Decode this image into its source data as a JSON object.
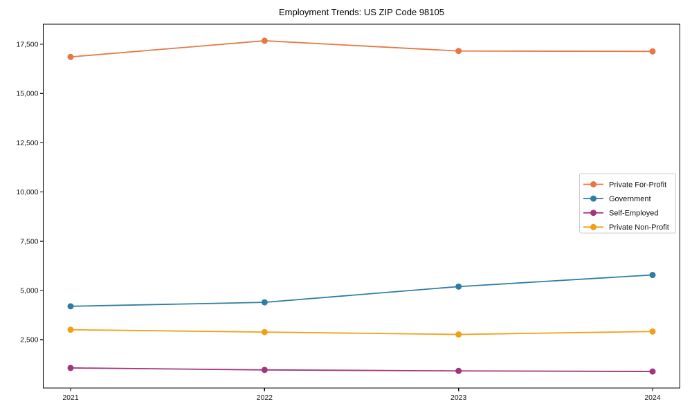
{
  "chart_data": {
    "type": "line",
    "title": "Employment Trends: US ZIP Code 98105",
    "xlabel": "",
    "ylabel": "",
    "x": [
      2021,
      2022,
      2023,
      2024
    ],
    "x_tick_labels": [
      "2021",
      "2022",
      "2023",
      "2024"
    ],
    "y_ticks": [
      2500,
      5000,
      7500,
      10000,
      12500,
      15000,
      17500
    ],
    "y_tick_labels": [
      "2,500",
      "5,000",
      "7,500",
      "10,000",
      "12,500",
      "15,000",
      "17,500"
    ],
    "ylim": [
      50,
      18520
    ],
    "grid": false,
    "legend_position": "center-right",
    "marker": "circle",
    "axis_color": "#000000",
    "background_color": "#ffffff",
    "legend_border_color": "#cccccc",
    "series": [
      {
        "name": "Private For-Profit",
        "color": "#e67846",
        "values": [
          16860,
          17680,
          17160,
          17140
        ]
      },
      {
        "name": "Government",
        "color": "#2f7ea1",
        "values": [
          4200,
          4400,
          5200,
          5790
        ]
      },
      {
        "name": "Self-Employed",
        "color": "#a1357e",
        "values": [
          1070,
          970,
          920,
          890
        ]
      },
      {
        "name": "Private Non-Profit",
        "color": "#f0a014",
        "values": [
          3010,
          2890,
          2770,
          2920
        ]
      }
    ]
  }
}
